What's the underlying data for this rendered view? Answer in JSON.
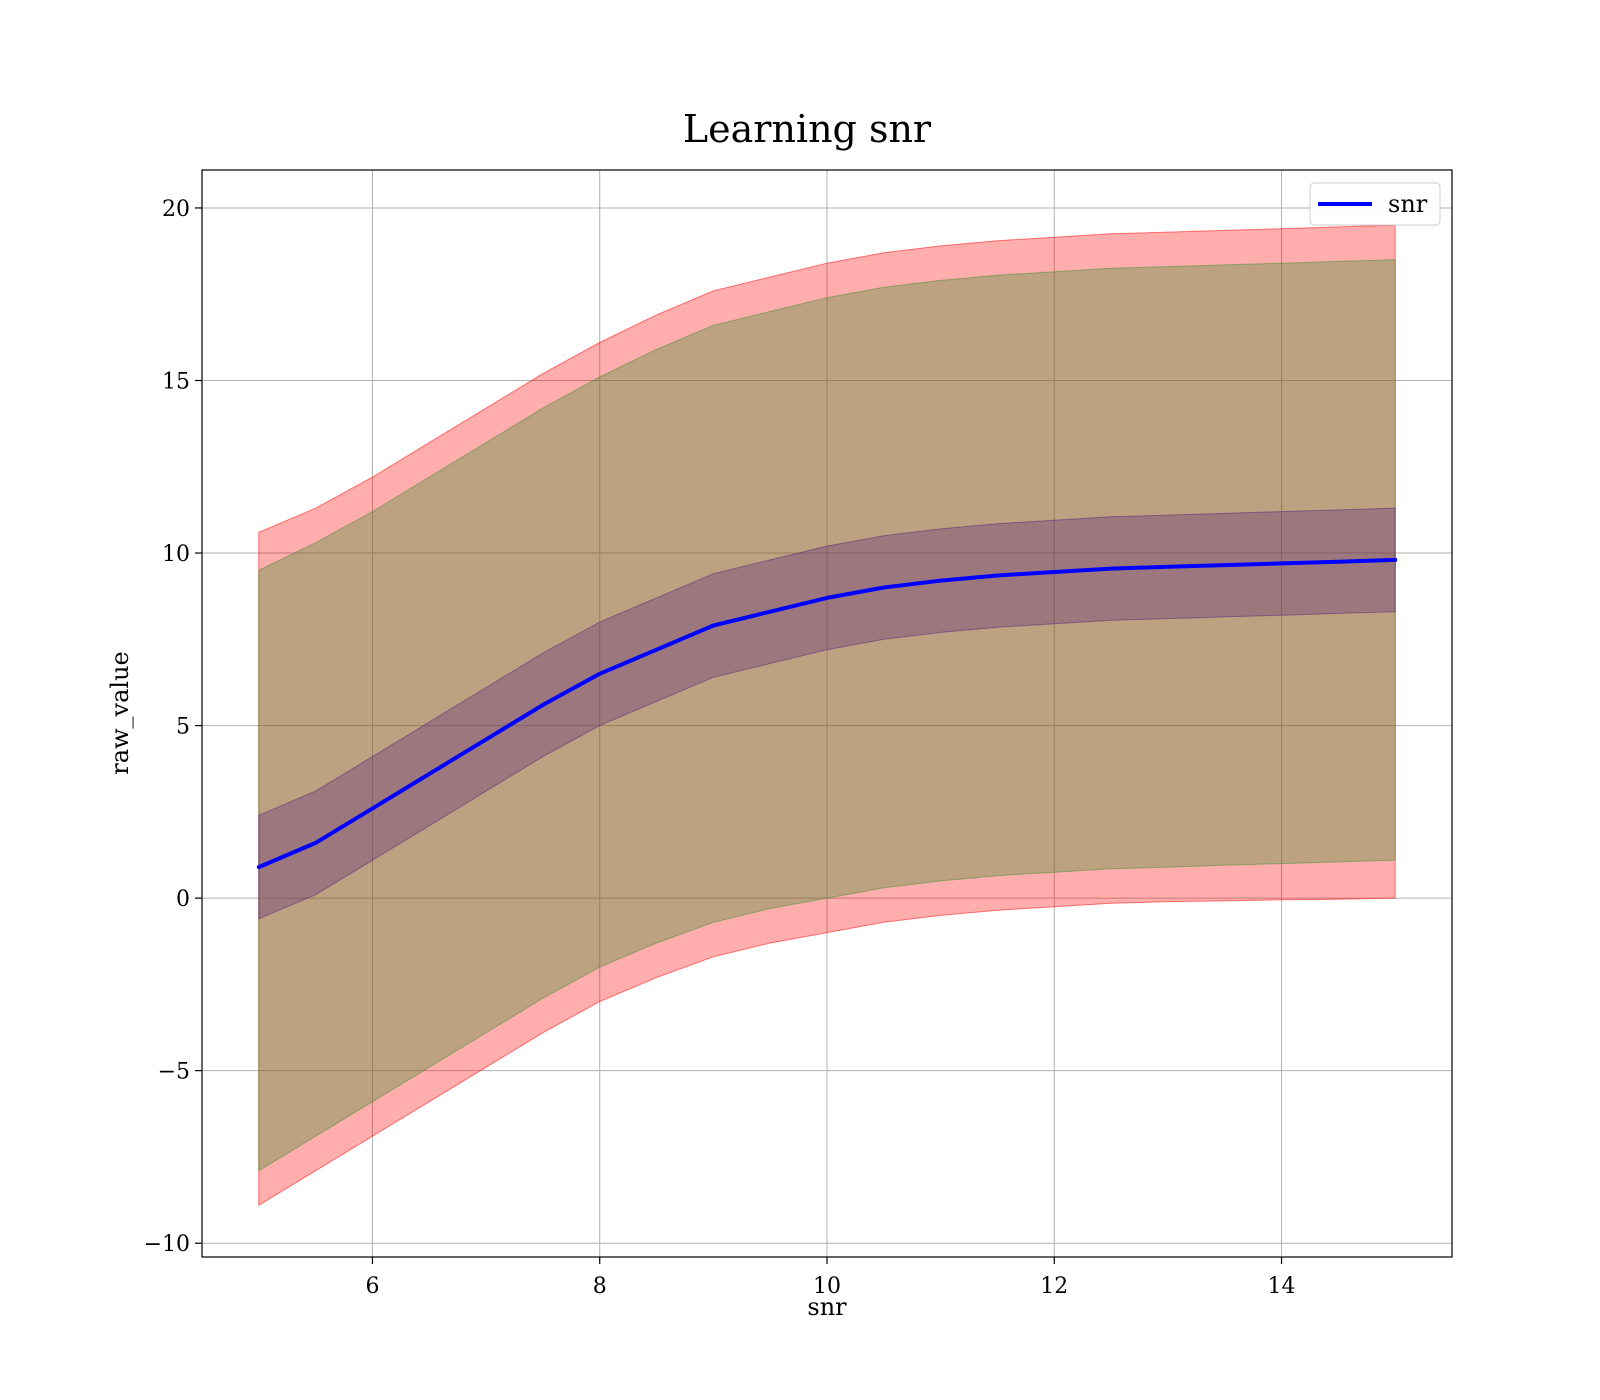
{
  "chart_data": {
    "type": "area",
    "title": "Learning snr",
    "xlabel": "snr",
    "ylabel": "raw_value",
    "xlim": [
      4.5,
      15.5
    ],
    "ylim": [
      -10.4,
      21.1
    ],
    "xticks": [
      6,
      8,
      10,
      12,
      14
    ],
    "yticks": [
      -10,
      -5,
      0,
      5,
      10,
      15,
      20
    ],
    "xtick_labels": [
      "6",
      "8",
      "10",
      "12",
      "14"
    ],
    "ytick_labels": [
      "−10",
      "−5",
      "0",
      "5",
      "10",
      "15",
      "20"
    ],
    "grid": true,
    "legend": {
      "position": "top-right",
      "entries": [
        "snr"
      ]
    },
    "x": [
      5,
      5.5,
      6,
      6.5,
      7,
      7.5,
      8,
      8.5,
      9,
      9.5,
      10,
      10.5,
      11,
      11.5,
      12,
      12.5,
      13,
      13.5,
      14,
      14.5,
      15
    ],
    "series": [
      {
        "name": "snr",
        "kind": "line",
        "color": "#0000ff",
        "values": [
          0.9,
          1.6,
          2.6,
          3.6,
          4.6,
          5.6,
          6.5,
          7.2,
          7.9,
          8.3,
          8.7,
          9.0,
          9.2,
          9.35,
          9.45,
          9.55,
          9.6,
          9.65,
          9.7,
          9.75,
          9.8
        ]
      },
      {
        "kind": "band",
        "color": "#ff0000",
        "opacity": 0.32,
        "lower": [
          -8.9,
          -7.9,
          -6.9,
          -5.9,
          -4.9,
          -3.9,
          -3.0,
          -2.3,
          -1.7,
          -1.3,
          -1.0,
          -0.7,
          -0.5,
          -0.35,
          -0.25,
          -0.15,
          -0.1,
          -0.08,
          -0.05,
          -0.03,
          0.0
        ],
        "upper": [
          10.6,
          11.3,
          12.2,
          13.2,
          14.2,
          15.2,
          16.1,
          16.9,
          17.6,
          18.0,
          18.4,
          18.7,
          18.9,
          19.05,
          19.15,
          19.25,
          19.3,
          19.35,
          19.4,
          19.45,
          19.5
        ]
      },
      {
        "kind": "band",
        "color": "#3f8f2f",
        "opacity": 0.35,
        "lower": [
          -7.9,
          -6.9,
          -5.9,
          -4.9,
          -3.9,
          -2.9,
          -2.0,
          -1.3,
          -0.7,
          -0.3,
          0.0,
          0.3,
          0.5,
          0.65,
          0.75,
          0.85,
          0.9,
          0.95,
          1.0,
          1.05,
          1.1
        ],
        "upper": [
          9.5,
          10.3,
          11.2,
          12.2,
          13.2,
          14.2,
          15.1,
          15.9,
          16.6,
          17.0,
          17.4,
          17.7,
          17.9,
          18.05,
          18.15,
          18.25,
          18.3,
          18.35,
          18.4,
          18.45,
          18.5
        ]
      },
      {
        "kind": "band",
        "color": "#5a1f7a",
        "opacity": 0.32,
        "lower": [
          -0.6,
          0.1,
          1.1,
          2.1,
          3.1,
          4.1,
          5.0,
          5.7,
          6.4,
          6.8,
          7.2,
          7.5,
          7.7,
          7.85,
          7.95,
          8.05,
          8.1,
          8.15,
          8.2,
          8.25,
          8.3
        ],
        "upper": [
          2.4,
          3.1,
          4.1,
          5.1,
          6.1,
          7.1,
          8.0,
          8.7,
          9.4,
          9.8,
          10.2,
          10.5,
          10.7,
          10.85,
          10.95,
          11.05,
          11.1,
          11.15,
          11.2,
          11.25,
          11.3
        ]
      }
    ]
  }
}
